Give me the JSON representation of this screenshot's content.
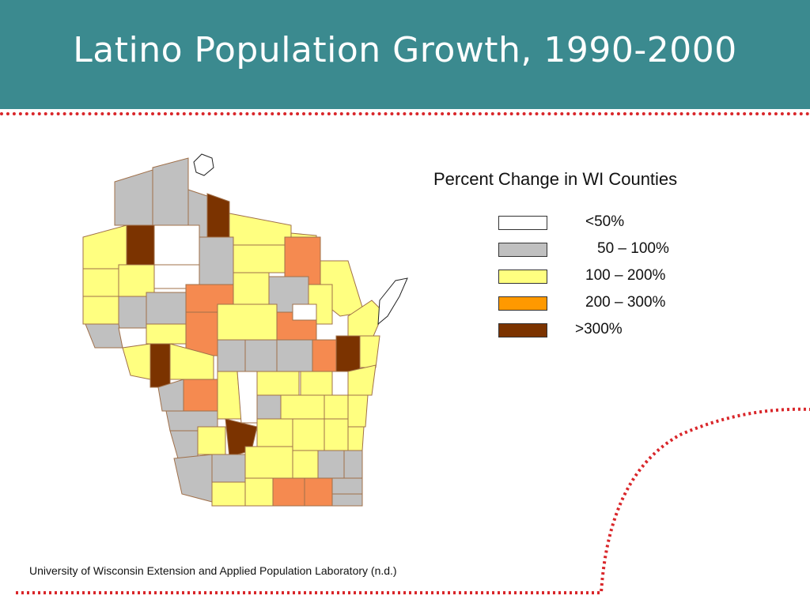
{
  "slide": {
    "title": "Latino Population Growth, 1990-2000",
    "source": "University of Wisconsin Extension and Applied Population Laboratory (n.d.)"
  },
  "legend": {
    "title": "Percent Change in WI Counties",
    "items": [
      {
        "label": "<50%",
        "color": "#ffffff"
      },
      {
        "label": "50 – 100%",
        "color": "#c0c0c0"
      },
      {
        "label": "100 – 200%",
        "color": "#ffff80"
      },
      {
        "label": "200 – 300%",
        "color": "#ff9900"
      },
      {
        "label": ">300%",
        "color": "#7b3300"
      }
    ]
  },
  "colors": {
    "header": "#3b8a8f",
    "dotted_line": "#d9262a",
    "county_border": "#a0704a",
    "map_high": "#f58a50",
    "map_very_high": "#7b3300"
  }
}
